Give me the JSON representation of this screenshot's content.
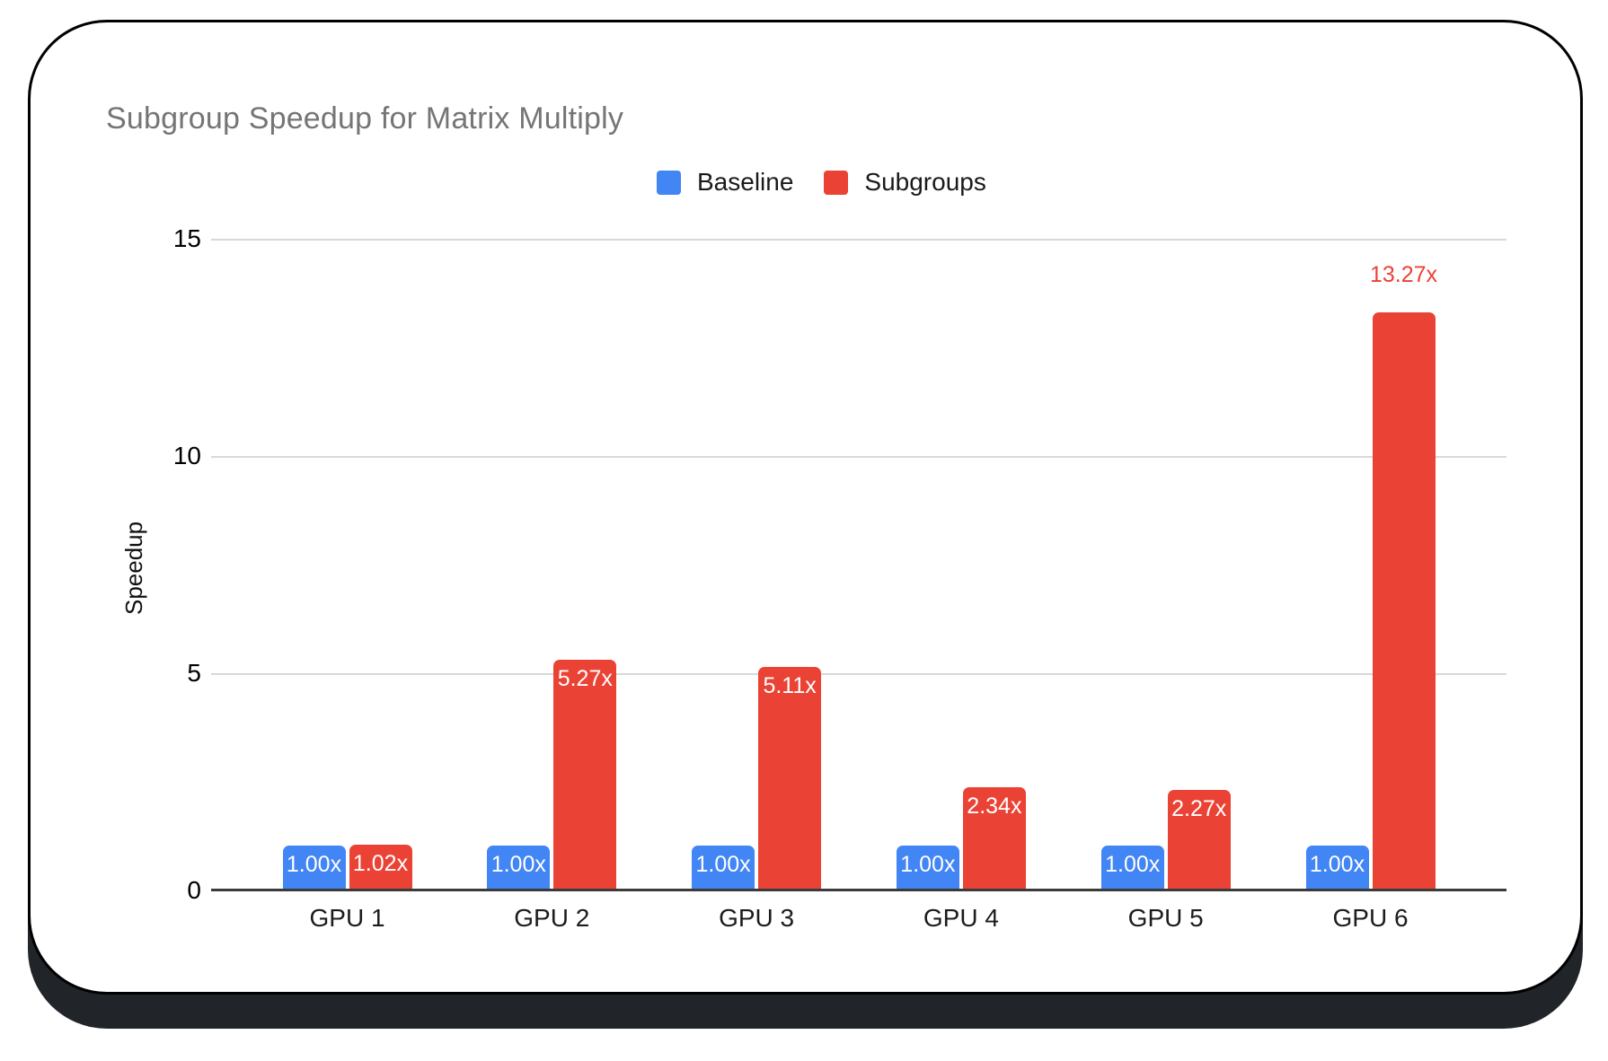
{
  "chart_data": {
    "type": "bar",
    "title": "Subgroup Speedup for Matrix Multiply",
    "ylabel": "Speedup",
    "xlabel": "",
    "categories": [
      "GPU 1",
      "GPU 2",
      "GPU 3",
      "GPU 4",
      "GPU 5",
      "GPU 6"
    ],
    "series": [
      {
        "name": "Baseline",
        "color": "#4285F4",
        "values": [
          1.0,
          1.0,
          1.0,
          1.0,
          1.0,
          1.0
        ],
        "labels": [
          "1.00x",
          "1.00x",
          "1.00x",
          "1.00x",
          "1.00x",
          "1.00x"
        ],
        "label_placements": [
          "inside",
          "inside",
          "inside",
          "inside",
          "inside",
          "inside"
        ]
      },
      {
        "name": "Subgroups",
        "color": "#EA4335",
        "values": [
          1.02,
          5.27,
          5.11,
          2.34,
          2.27,
          13.27
        ],
        "labels": [
          "1.02x",
          "5.27x",
          "5.11x",
          "2.34x",
          "2.27x",
          "13.27x"
        ],
        "label_placements": [
          "inside",
          "inside",
          "inside",
          "inside",
          "inside",
          "above"
        ]
      }
    ],
    "yticks": [
      0,
      5,
      10,
      15
    ],
    "ylim": [
      0,
      15
    ],
    "grid": true,
    "legend_position": "top",
    "value_label_inside_color": "#ffffff",
    "value_label_above_color": "#EA4335"
  }
}
